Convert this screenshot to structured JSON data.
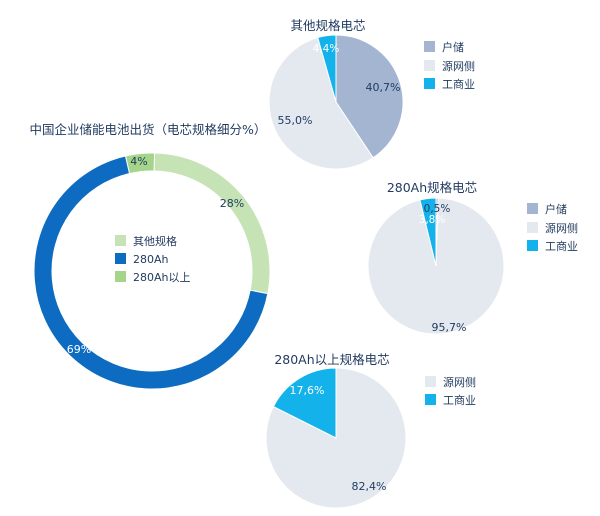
{
  "chart_data": [
    {
      "type": "pie",
      "variant": "donut",
      "title": "中国企业储能电池出货（电芯规格细分%）",
      "categories": [
        "其他规格",
        "280Ah",
        "280Ah以上"
      ],
      "values": [
        28,
        69,
        4
      ],
      "labels": [
        "28%",
        "69%",
        "4%"
      ],
      "colors": [
        "#c6e3b5",
        "#0d6cc1",
        "#a5d58a"
      ],
      "legend": "center"
    },
    {
      "type": "pie",
      "title": "其他规格电芯",
      "categories": [
        "户储",
        "源网侧",
        "工商业"
      ],
      "values": [
        40.7,
        55.0,
        4.4
      ],
      "labels": [
        "40,7%",
        "55,0%",
        "4,4%"
      ],
      "colors": [
        "#a3b5d1",
        "#e4e8ef",
        "#14b2ea"
      ],
      "legend": "right"
    },
    {
      "type": "pie",
      "title": "280Ah规格电芯",
      "categories": [
        "户储",
        "源网侧",
        "工商业"
      ],
      "values": [
        0.5,
        95.7,
        3.8
      ],
      "labels": [
        "0,5%",
        "95,7%",
        "3,8%"
      ],
      "colors": [
        "#a3b5d1",
        "#e4e8ef",
        "#14b2ea"
      ],
      "legend": "right"
    },
    {
      "type": "pie",
      "title": "280Ah以上规格电芯",
      "categories": [
        "源网侧",
        "工商业"
      ],
      "values": [
        82.4,
        17.6
      ],
      "labels": [
        "82,4%",
        "17,6%"
      ],
      "colors": [
        "#e4e8ef",
        "#14b2ea"
      ],
      "legend": "right"
    }
  ]
}
